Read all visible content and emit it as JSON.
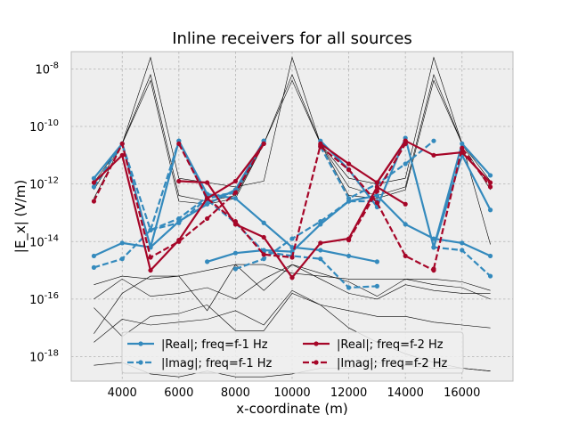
{
  "chart_data": {
    "type": "line",
    "title": "Inline receivers for all sources",
    "xlabel": "x-coordinate (m)",
    "ylabel": "|E_x| (V/m)",
    "xlim": [
      2200,
      17800
    ],
    "ylim_exp": [
      -18.85,
      -7.4
    ],
    "yscale": "log",
    "grid": true,
    "legend_position": "lower-center",
    "legend_ncol": 2,
    "x_ticks": [
      4000,
      6000,
      8000,
      10000,
      12000,
      14000,
      16000
    ],
    "x_tick_labels": [
      "4000",
      "6000",
      "8000",
      "10000",
      "12000",
      "14000",
      "16000"
    ],
    "y_ticks": [
      {
        "exp": -8,
        "label": "-8"
      },
      {
        "exp": -10,
        "label": "-10"
      },
      {
        "exp": -12,
        "label": "-12"
      },
      {
        "exp": -14,
        "label": "-14"
      },
      {
        "exp": -16,
        "label": "-16"
      },
      {
        "exp": -18,
        "label": "-18"
      }
    ],
    "colors": {
      "blue": "#348abd",
      "red": "#a60628",
      "black": "#000000",
      "background": "#eeeeee",
      "grid": "#b2b2b2"
    },
    "series": [
      {
        "name": "|Real|; freq=f-1 Hz",
        "color": "#348abd",
        "dash": false,
        "marker": true,
        "segments": [
          {
            "x": [
              3000,
              4000,
              5000,
              6000,
              7000,
              8000,
              9000
            ],
            "log10y": [
              -11.8,
              -10.6,
              -14.2,
              -13.3,
              -12.7,
              -12.2,
              -10.5
            ]
          },
          {
            "x": [
              3000,
              4000,
              5000,
              6000,
              7000,
              8000,
              9000,
              10000,
              11000,
              12000,
              13000
            ],
            "log10y": [
              -14.5,
              -14.05,
              -14.2,
              -10.5,
              -12.35,
              -12.5,
              -13.35,
              -14.2,
              -14.3,
              -14.5,
              -14.7
            ]
          },
          {
            "x": [
              7000,
              8000,
              9000,
              10000,
              11000,
              12000,
              13000,
              14000,
              15000,
              16000,
              17000
            ],
            "log10y": [
              -14.7,
              -14.4,
              -14.3,
              -14.35,
              -13.4,
              -12.6,
              -12.4,
              -13.4,
              -13.9,
              -14.05,
              -14.5
            ]
          },
          {
            "x": [
              11000,
              12000,
              13000,
              14000,
              15000,
              16000,
              17000
            ],
            "log10y": [
              -10.5,
              -11.5,
              -12.8,
              -10.4,
              -14.2,
              -10.6,
              -11.7
            ]
          },
          {
            "x": [
              15000,
              16000,
              17000
            ],
            "log10y": [
              -14.2,
              -11.0,
              -12.9
            ]
          }
        ]
      },
      {
        "name": "|Imag|; freq=f-1 Hz",
        "color": "#348abd",
        "dash": true,
        "marker": true,
        "segments": [
          {
            "x": [
              3000,
              4000,
              5000,
              6000,
              7000,
              8000,
              9000
            ],
            "log10y": [
              -12.1,
              -10.6,
              -13.6,
              -13.35,
              -12.5,
              -12.3,
              -10.5
            ]
          },
          {
            "x": [
              3000,
              4000,
              5000,
              6000,
              7000,
              8000,
              9000
            ],
            "log10y": [
              -14.9,
              -14.6,
              -13.6,
              -13.2,
              -12.45,
              -12.3,
              -10.5
            ]
          },
          {
            "x": [
              5000,
              6000,
              7000,
              8000,
              9000,
              10000,
              11000,
              12000,
              13000
            ],
            "log10y": [
              -13.6,
              -10.5,
              -12.55,
              -13.35,
              -14.35,
              -14.5,
              -14.6,
              -15.6,
              -15.55
            ]
          },
          {
            "x": [
              8000,
              9000,
              10000,
              11000,
              12000,
              13000
            ],
            "log10y": [
              -14.95,
              -14.6,
              -13.9,
              -13.3,
              -12.6,
              -12.6
            ]
          },
          {
            "x": [
              11000,
              12000,
              13000,
              14000,
              15000
            ],
            "log10y": [
              -10.7,
              -12.5,
              -12.0,
              -11.3,
              -10.5
            ]
          },
          {
            "x": [
              15000,
              16000,
              17000
            ],
            "log10y": [
              -14.2,
              -14.3,
              -15.2
            ]
          }
        ]
      },
      {
        "name": "|Real|; freq=f-2 Hz",
        "color": "#a60628",
        "dash": false,
        "marker": true,
        "segments": [
          {
            "x": [
              3000,
              4000,
              5000,
              6000,
              7000,
              8000,
              9000
            ],
            "log10y": [
              -11.95,
              -11.0,
              -15.0,
              -13.95,
              -12.5,
              -11.9,
              -10.6
            ]
          },
          {
            "x": [
              6000,
              7000,
              8000,
              9000,
              10000
            ],
            "log10y": [
              -11.9,
              -11.95,
              -13.4,
              -13.85,
              -15.25
            ]
          },
          {
            "x": [
              10000,
              11000,
              12000,
              13000,
              14000
            ],
            "log10y": [
              -15.25,
              -14.05,
              -13.9,
              -12.1,
              -12.7
            ]
          },
          {
            "x": [
              11000,
              12000,
              13000,
              14000,
              15000,
              16000,
              17000
            ],
            "log10y": [
              -10.6,
              -11.3,
              -11.95,
              -10.5,
              -11.0,
              -10.9,
              -11.95
            ]
          },
          {
            "x": [
              13000,
              14000
            ],
            "log10y": [
              -11.95,
              -10.5
            ]
          }
        ]
      },
      {
        "name": "|Imag|; freq=f-2 Hz",
        "color": "#a60628",
        "dash": true,
        "marker": true,
        "segments": [
          {
            "x": [
              3000,
              4000,
              5000,
              6000,
              7000,
              8000,
              9000
            ],
            "log10y": [
              -12.6,
              -10.6,
              -14.55,
              -14.0,
              -13.2,
              -12.3,
              -10.6
            ]
          },
          {
            "x": [
              6000,
              7000,
              8000,
              9000,
              10000,
              11000
            ],
            "log10y": [
              -10.6,
              -12.5,
              -13.3,
              -14.45,
              -14.55,
              -10.65
            ]
          },
          {
            "x": [
              11000,
              12000,
              13000,
              14000,
              15000
            ],
            "log10y": [
              -10.7,
              -11.5,
              -12.65,
              -14.5,
              -15.0
            ]
          },
          {
            "x": [
              12000,
              13000,
              14000
            ],
            "log10y": [
              -13.95,
              -12.25,
              -10.6
            ]
          },
          {
            "x": [
              15000,
              16000,
              17000
            ],
            "log10y": [
              -14.95,
              -10.75,
              -12.1
            ]
          }
        ]
      },
      {
        "color": "#000000",
        "thin": true,
        "segments": [
          {
            "x": [
              3000,
              4000,
              5000,
              6000,
              7000,
              8000,
              9000,
              10000,
              11000,
              12000,
              13000,
              14000,
              15000,
              16000,
              17000
            ],
            "log10y": [
              -11.95,
              -10.6,
              -7.6,
              -11.8,
              -11.95,
              -12.1,
              -11.9,
              -7.6,
              -10.6,
              -11.8,
              -12.0,
              -11.8,
              -7.6,
              -10.6,
              -11.9
            ]
          },
          {
            "x": [
              3000,
              4000,
              5000,
              6000,
              7000,
              8000,
              9000,
              10000,
              11000,
              12000,
              13000,
              14000,
              15000,
              16000,
              17000
            ],
            "log10y": [
              -12.2,
              -10.6,
              -8.2,
              -12.4,
              -12.6,
              -12.4,
              -10.6,
              -8.2,
              -10.6,
              -12.1,
              -12.4,
              -12.1,
              -8.2,
              -10.6,
              -12.2
            ]
          },
          {
            "x": [
              3000,
              4000,
              5000,
              6000,
              7000,
              8000,
              9000,
              10000,
              11000,
              12000,
              13000,
              14000,
              15000,
              16000,
              17000
            ],
            "log10y": [
              -12.5,
              -10.6,
              -8.4,
              -12.6,
              -12.7,
              -12.5,
              -10.6,
              -8.4,
              -10.6,
              -12.4,
              -12.5,
              -12.2,
              -8.4,
              -10.6,
              -14.1
            ]
          },
          {
            "x": [
              3000,
              4000,
              5000,
              6000,
              7000,
              8000,
              9000,
              10000,
              11000,
              12000,
              13000,
              14000,
              15000,
              16000,
              17000
            ],
            "log10y": [
              -15.5,
              -15.2,
              -15.3,
              -15.2,
              -15.0,
              -14.8,
              -14.8,
              -15.1,
              -15.2,
              -15.3,
              -15.3,
              -15.3,
              -15.3,
              -15.4,
              -15.7
            ]
          },
          {
            "x": [
              3000,
              4000,
              5000,
              6000,
              7000,
              8000,
              9000,
              10000,
              11000,
              12000,
              13000,
              14000,
              15000,
              16000,
              17000
            ],
            "log10y": [
              -16.0,
              -15.3,
              -15.9,
              -15.8,
              -15.6,
              -16.0,
              -15.3,
              -14.8,
              -15.3,
              -15.8,
              -16.0,
              -15.5,
              -15.7,
              -15.8,
              -15.8
            ]
          },
          {
            "x": [
              3000,
              4000,
              5000,
              6000,
              7000,
              8000,
              9000,
              10000,
              11000,
              12000,
              13000,
              14000,
              15000,
              16000,
              17000
            ],
            "log10y": [
              -17.2,
              -15.8,
              -15.2,
              -15.2,
              -16.4,
              -14.8,
              -15.7,
              -14.8,
              -15.1,
              -15.4,
              -15.9,
              -15.3,
              -15.5,
              -15.6,
              -16.0
            ]
          },
          {
            "x": [
              3000,
              4000,
              5000,
              6000,
              7000,
              8000,
              9000,
              10000,
              11000,
              12000,
              13000,
              14000,
              15000,
              16000,
              17000
            ],
            "log10y": [
              -17.5,
              -16.7,
              -16.9,
              -16.8,
              -16.7,
              -16.4,
              -16.9,
              -15.7,
              -16.2,
              -16.4,
              -16.6,
              -16.6,
              -16.8,
              -16.9,
              -17.0
            ]
          },
          {
            "x": [
              3000,
              4000,
              5000,
              6000,
              7000,
              8000,
              9000,
              10000,
              11000,
              12000,
              13000,
              14000,
              15000,
              16000,
              17000
            ],
            "log10y": [
              -16.3,
              -17.3,
              -16.6,
              -16.5,
              -16.2,
              -17.1,
              -17.1,
              -15.8,
              -16.2,
              -17.0,
              -17.5,
              -17.9,
              -18.2,
              -18.4,
              -18.5
            ]
          },
          {
            "x": [
              3000,
              4000,
              5000,
              6000,
              7000,
              8000,
              9000,
              10000,
              11000,
              12000,
              13000,
              14000,
              15000,
              16000,
              17000
            ],
            "log10y": [
              -18.3,
              -18.2,
              -18.6,
              -18.7,
              -18.5,
              -18.7,
              -18.7,
              -18.6,
              -18.4,
              -18.4,
              -18.2,
              -18.3,
              -18.4,
              -18.4,
              -18.5
            ]
          }
        ]
      }
    ]
  }
}
